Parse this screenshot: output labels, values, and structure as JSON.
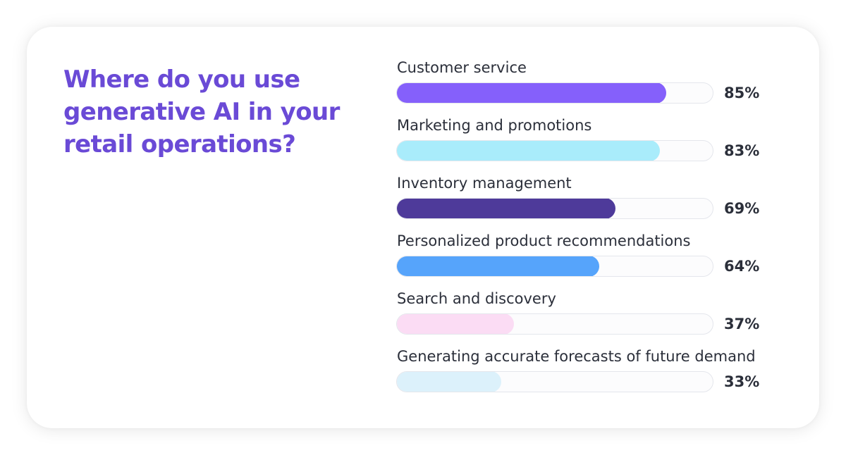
{
  "chart_data": {
    "type": "bar",
    "orientation": "horizontal",
    "title": "Where do you use generative AI in your retail operations?",
    "categories": [
      "Customer service",
      "Marketing and promotions",
      "Inventory management",
      "Personalized product recommendations",
      "Search and discovery",
      "Generating accurate forecasts of future demand"
    ],
    "values": [
      85,
      83,
      69,
      64,
      37,
      33
    ],
    "value_labels": [
      "85%",
      "83%",
      "69%",
      "64%",
      "37%",
      "33%"
    ],
    "colors": [
      "#8560fb",
      "#a9ecfb",
      "#4e3a9a",
      "#56a4fb",
      "#fbdcf4",
      "#dcf1fb"
    ],
    "xlim": [
      0,
      100
    ],
    "grid": false,
    "legend": "none"
  }
}
